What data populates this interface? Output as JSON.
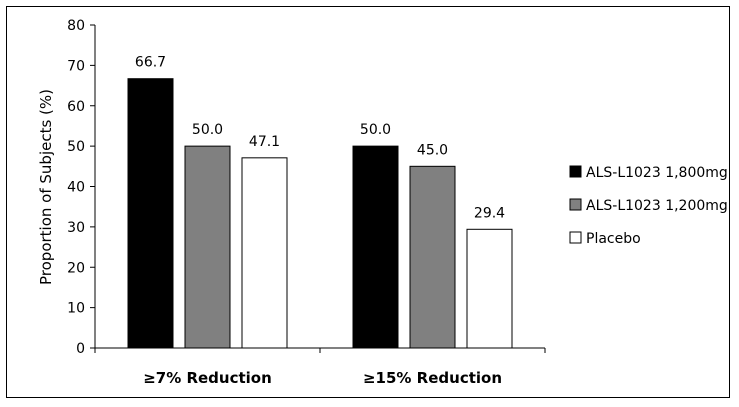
{
  "chart_data": {
    "type": "bar",
    "title": "",
    "xlabel": "",
    "ylabel": "Proportion of Subjects (%)",
    "ylim": [
      0,
      80
    ],
    "yticks": [
      0,
      10,
      20,
      30,
      40,
      50,
      60,
      70,
      80
    ],
    "grid": false,
    "legend_position": "right",
    "categories": [
      "≥7% Reduction",
      "≥15% Reduction"
    ],
    "series": [
      {
        "name": "ALS-L1023 1,800mg",
        "values": [
          66.7,
          50.0
        ],
        "labels": [
          "66.7",
          "50.0"
        ],
        "color": "#000000"
      },
      {
        "name": "ALS-L1023 1,200mg",
        "values": [
          50.0,
          45.0
        ],
        "labels": [
          "50.0",
          "45.0"
        ],
        "color": "#808080"
      },
      {
        "name": "Placebo",
        "values": [
          47.1,
          29.4
        ],
        "labels": [
          "47.1",
          "29.4"
        ],
        "color": "#ffffff"
      }
    ]
  }
}
